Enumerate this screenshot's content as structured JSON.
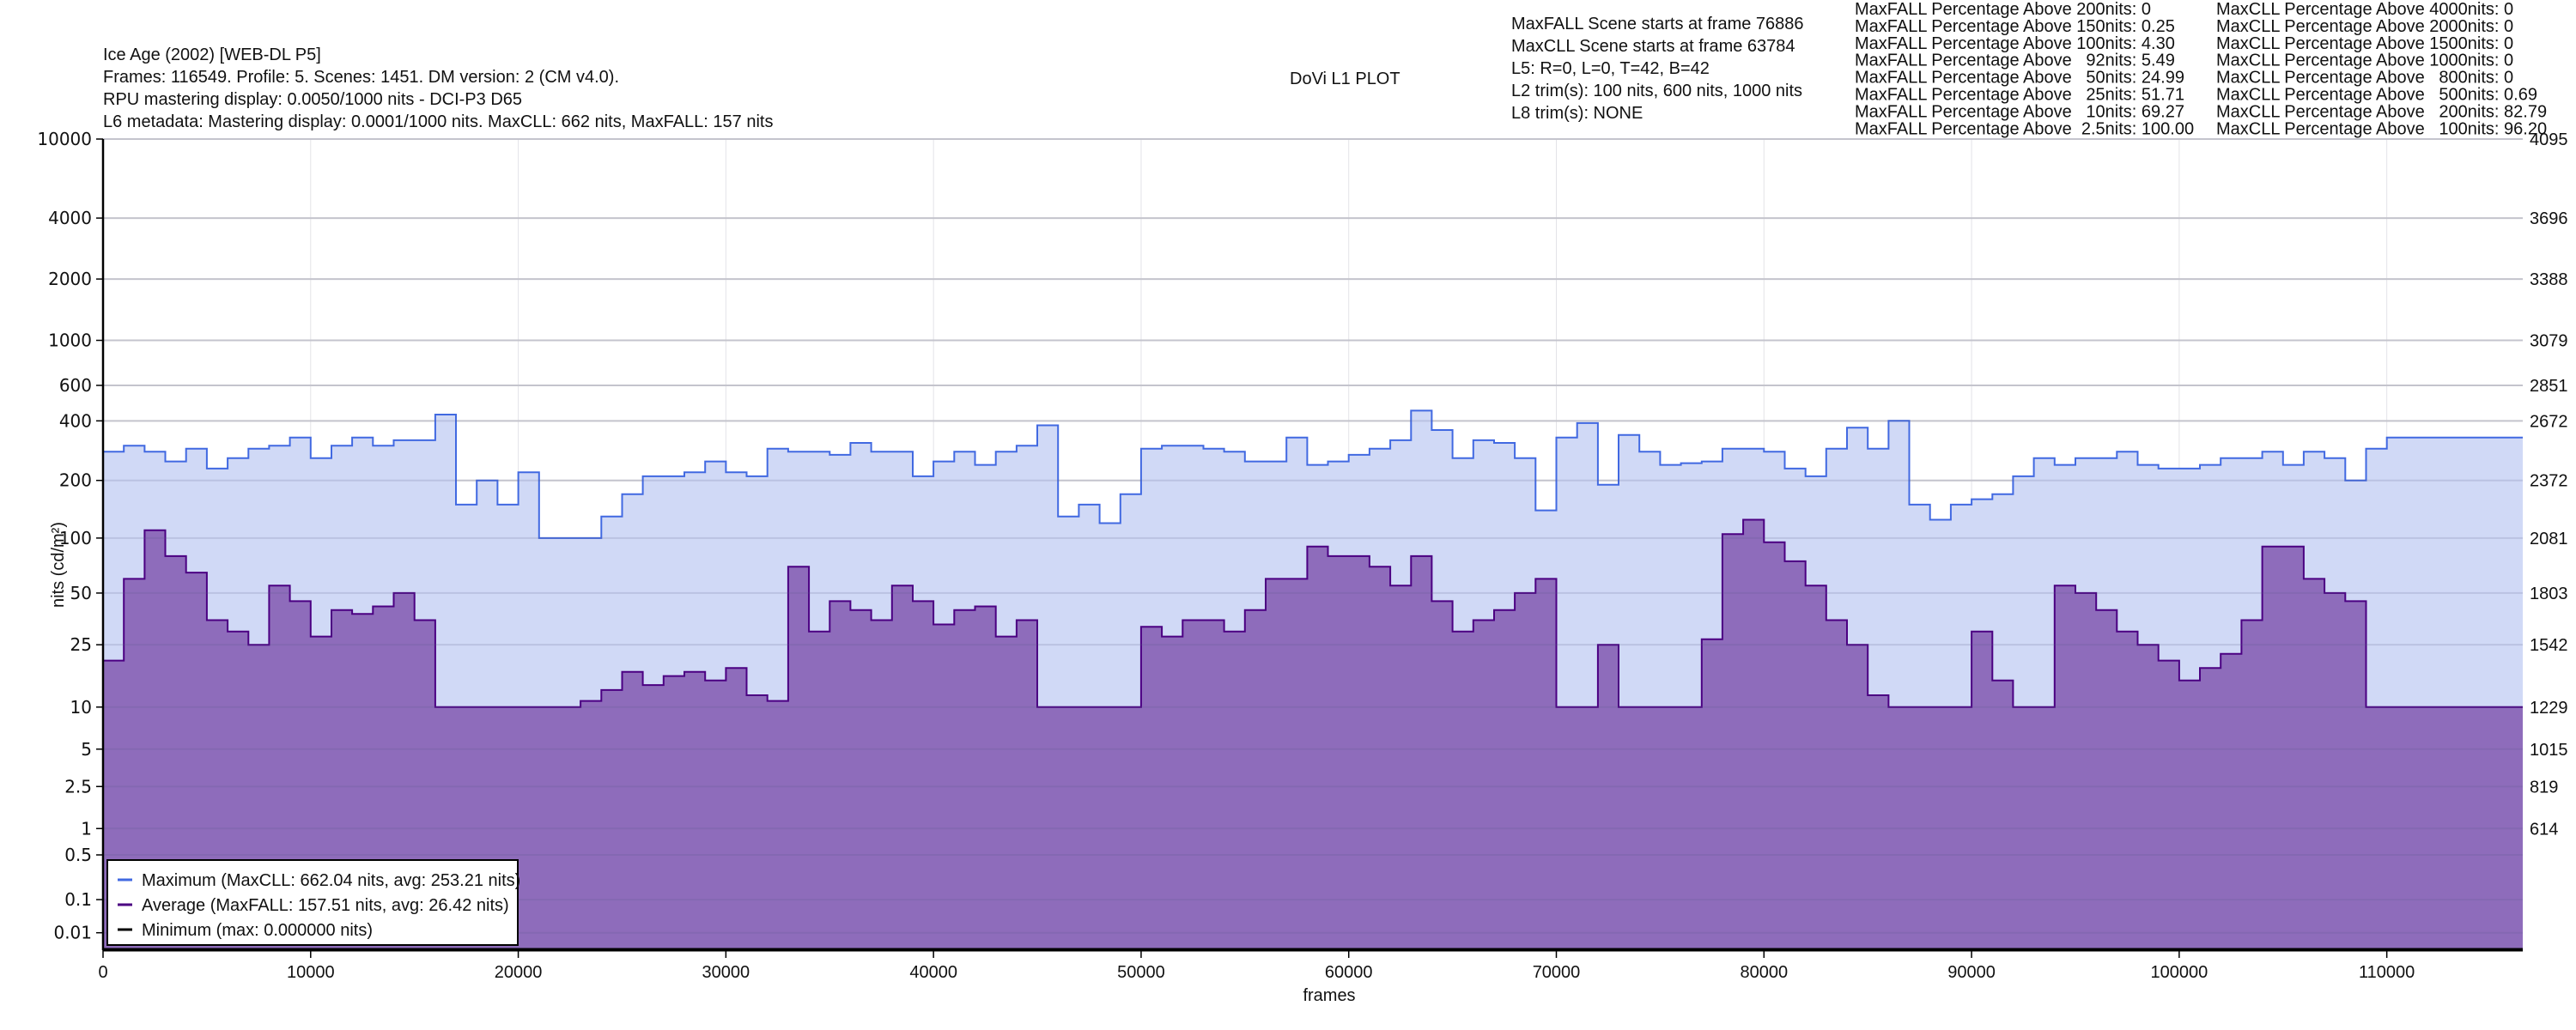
{
  "header": {
    "title": "Ice Age (2002) [WEB-DL P5]",
    "info": [
      "Frames: 116549. Profile: 5. Scenes: 1451. DM version: 2 (CM v4.0).",
      "RPU mastering display: 0.0050/1000 nits - DCI-P3 D65",
      "L6 metadata: Mastering display: 0.0001/1000 nits. MaxCLL: 662 nits, MaxFALL: 157 nits"
    ],
    "plot_title": "DoVi L1 PLOT",
    "scene_info": [
      "MaxFALL Scene starts at frame 76886",
      "MaxCLL Scene starts at frame 63784",
      "L5: R=0, L=0, T=42, B=42",
      "L2 trim(s): 100 nits, 600 nits, 1000 nits",
      "L8 trim(s): NONE"
    ],
    "maxfall_pct": [
      "MaxFALL Percentage Above 200nits: 0",
      "MaxFALL Percentage Above 150nits: 0.25",
      "MaxFALL Percentage Above 100nits: 4.30",
      "MaxFALL Percentage Above   92nits: 5.49",
      "MaxFALL Percentage Above   50nits: 24.99",
      "MaxFALL Percentage Above   25nits: 51.71",
      "MaxFALL Percentage Above   10nits: 69.27",
      "MaxFALL Percentage Above  2.5nits: 100.00"
    ],
    "maxcll_pct": [
      "MaxCLL Percentage Above 4000nits: 0",
      "MaxCLL Percentage Above 2000nits: 0",
      "MaxCLL Percentage Above 1500nits: 0",
      "MaxCLL Percentage Above 1000nits: 0",
      "MaxCLL Percentage Above   800nits: 0",
      "MaxCLL Percentage Above   500nits: 0.69",
      "MaxCLL Percentage Above   200nits: 82.79",
      "MaxCLL Percentage Above   100nits: 96.20"
    ]
  },
  "chart_data": {
    "type": "area",
    "title": "DoVi L1 PLOT",
    "xlabel": "frames",
    "ylabel": "nits (cd/m²)",
    "xlim": [
      0,
      116549
    ],
    "x_ticks": [
      0,
      10000,
      20000,
      30000,
      40000,
      50000,
      60000,
      70000,
      80000,
      90000,
      100000,
      110000
    ],
    "y_scale": "PQ",
    "ylim_nits": [
      0,
      10000
    ],
    "y_ticks_nits": [
      10000,
      4000,
      2000,
      1000,
      600,
      400,
      200,
      100,
      50,
      25,
      10,
      5,
      2.5,
      1,
      0.5,
      0.1,
      0.01
    ],
    "y_tick_labels": [
      "10000",
      "4000",
      "2000",
      "1000",
      "600",
      "400",
      "200",
      "100",
      "50",
      "25",
      "10",
      "5",
      "2.5",
      "1",
      "0.5",
      "0.1",
      "0.01"
    ],
    "right_ticks_nits": [
      10000,
      4000,
      2000,
      1000,
      600,
      400,
      200,
      100,
      50,
      25,
      10,
      5,
      2.5,
      1
    ],
    "right_tick_labels": [
      "4095",
      "3696",
      "3388",
      "3079",
      "2851",
      "2672",
      "2372",
      "2081",
      "1803",
      "1542",
      "1229",
      "1015",
      "819",
      "614"
    ],
    "grid": true,
    "legend_position": "bottom-left",
    "bin_size_frames": 1000,
    "series": [
      {
        "name": "Maximum (MaxCLL: 662.04 nits, avg: 253.21 nits)",
        "color": "#4169e1",
        "fill": "#d0d9f6",
        "values": [
          280,
          300,
          280,
          250,
          290,
          230,
          260,
          290,
          300,
          330,
          260,
          300,
          330,
          300,
          320,
          320,
          430,
          150,
          200,
          150,
          220,
          100,
          100,
          100,
          130,
          170,
          210,
          210,
          220,
          250,
          220,
          210,
          290,
          280,
          280,
          270,
          310,
          280,
          280,
          210,
          250,
          280,
          240,
          280,
          300,
          380,
          130,
          150,
          120,
          170,
          290,
          300,
          300,
          290,
          280,
          250,
          250,
          330,
          240,
          250,
          270,
          290,
          320,
          450,
          360,
          260,
          320,
          310,
          260,
          140,
          330,
          390,
          190,
          340,
          280,
          240,
          245,
          250,
          290,
          290,
          280,
          230,
          210,
          290,
          370,
          290,
          400,
          150,
          125,
          150,
          160,
          170,
          210,
          260,
          240,
          260,
          260,
          280,
          240,
          230,
          230,
          240,
          260,
          260,
          280,
          240,
          280,
          260,
          200,
          290,
          330,
          330,
          330,
          330,
          330,
          330,
          330
        ]
      },
      {
        "name": "Average (MaxFALL: 157.51 nits, avg: 26.42 nits)",
        "color": "#4b0082",
        "fill": "#8e6cbb",
        "values": [
          20,
          60,
          110,
          80,
          65,
          35,
          30,
          25,
          55,
          45,
          28,
          40,
          38,
          42,
          50,
          35,
          10,
          10,
          10,
          10,
          10,
          10,
          10,
          11,
          13,
          17,
          14,
          16,
          17,
          15,
          18,
          12,
          11,
          70,
          30,
          45,
          40,
          35,
          55,
          45,
          33,
          40,
          42,
          28,
          35,
          10,
          10,
          10,
          10,
          10,
          32,
          28,
          35,
          35,
          30,
          40,
          60,
          60,
          90,
          80,
          80,
          70,
          55,
          80,
          45,
          30,
          35,
          40,
          50,
          60,
          10,
          10,
          25,
          10,
          10,
          10,
          10,
          27,
          105,
          125,
          95,
          75,
          55,
          35,
          25,
          12,
          10,
          10,
          10,
          10,
          30,
          15,
          10,
          10,
          55,
          50,
          40,
          30,
          25,
          20,
          15,
          18,
          22,
          35,
          90,
          90,
          60,
          50,
          45,
          10,
          10,
          10,
          10,
          10,
          10,
          10,
          10
        ]
      },
      {
        "name": "Minimum (max: 0.000000 nits)",
        "color": "#000000",
        "values": [
          0
        ]
      }
    ]
  }
}
